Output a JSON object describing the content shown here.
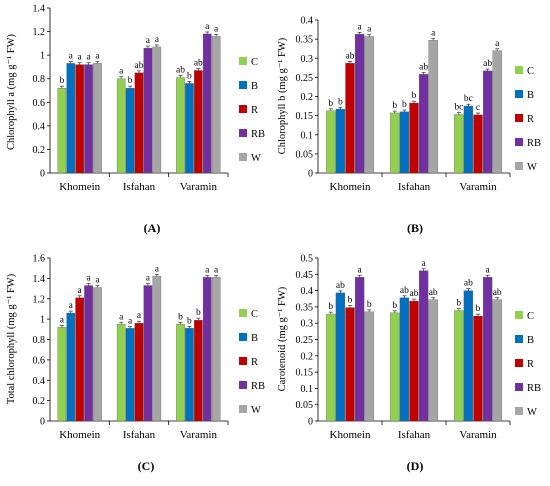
{
  "legend": [
    {
      "key": "C",
      "color": "#92D050"
    },
    {
      "key": "B",
      "color": "#0070C0"
    },
    {
      "key": "R",
      "color": "#C00000"
    },
    {
      "key": "RB",
      "color": "#7030A0"
    },
    {
      "key": "W",
      "color": "#A6A6A6"
    }
  ],
  "chart_data": [
    {
      "type": "bar",
      "panel_label": "(A)",
      "ylabel": "Chlorophyll a (mg g⁻¹ FW)",
      "ylim": [
        0,
        1.4
      ],
      "yticks": [
        "0",
        "0.2",
        "0.4",
        "0.6",
        "0.8",
        "1",
        "1.2",
        "1.4"
      ],
      "categories": [
        "Khomein",
        "Isfahan",
        "Varamin"
      ],
      "series": [
        {
          "name": "C",
          "values": [
            0.72,
            0.8,
            0.81
          ],
          "letters": [
            "b",
            "a",
            "ab"
          ]
        },
        {
          "name": "B",
          "values": [
            0.93,
            0.72,
            0.76
          ],
          "letters": [
            "a",
            "b",
            "b"
          ]
        },
        {
          "name": "R",
          "values": [
            0.92,
            0.85,
            0.87
          ],
          "letters": [
            "a",
            "ab",
            "ab"
          ]
        },
        {
          "name": "RB",
          "values": [
            0.92,
            1.06,
            1.18
          ],
          "letters": [
            "a",
            "a",
            "a"
          ]
        },
        {
          "name": "W",
          "values": [
            0.93,
            1.07,
            1.16
          ],
          "letters": [
            "a",
            "a",
            "a"
          ]
        }
      ]
    },
    {
      "type": "bar",
      "panel_label": "(B)",
      "ylabel": "Chlorophyll b (mg g⁻¹ FW)",
      "ylim": [
        0,
        0.4
      ],
      "yticks": [
        "0",
        "0.05",
        "0.1",
        "0.15",
        "0.2",
        "0.25",
        "0.3",
        "0.35",
        "0.4"
      ],
      "categories": [
        "Khomein",
        "Isfahan",
        "Varamin"
      ],
      "series": [
        {
          "name": "C",
          "values": [
            0.163,
            0.157,
            0.153
          ],
          "letters": [
            "b",
            "b",
            "bc"
          ]
        },
        {
          "name": "B",
          "values": [
            0.167,
            0.16,
            0.175
          ],
          "letters": [
            "b",
            "b",
            "bc"
          ]
        },
        {
          "name": "R",
          "values": [
            0.287,
            0.183,
            0.152
          ],
          "letters": [
            "ab",
            "b",
            "c"
          ]
        },
        {
          "name": "RB",
          "values": [
            0.363,
            0.258,
            0.267
          ],
          "letters": [
            "a",
            "ab",
            "ab"
          ]
        },
        {
          "name": "W",
          "values": [
            0.357,
            0.347,
            0.32
          ],
          "letters": [
            "a",
            "a",
            "a"
          ]
        }
      ]
    },
    {
      "type": "bar",
      "panel_label": "(C)",
      "ylabel": "Total chlorophyll (mg g⁻¹ FW)",
      "ylim": [
        0,
        1.6
      ],
      "yticks": [
        "0",
        "0.2",
        "0.4",
        "0.6",
        "0.8",
        "1",
        "1.2",
        "1.4",
        "1.6"
      ],
      "categories": [
        "Khomein",
        "Isfahan",
        "Varamin"
      ],
      "series": [
        {
          "name": "C",
          "values": [
            0.92,
            0.95,
            0.95
          ],
          "letters": [
            "a",
            "a",
            "b"
          ]
        },
        {
          "name": "B",
          "values": [
            1.06,
            0.91,
            0.91
          ],
          "letters": [
            "a",
            "a",
            "b"
          ]
        },
        {
          "name": "R",
          "values": [
            1.21,
            0.96,
            0.99
          ],
          "letters": [
            "a",
            "a",
            "b"
          ]
        },
        {
          "name": "RB",
          "values": [
            1.33,
            1.33,
            1.41
          ],
          "letters": [
            "a",
            "a",
            "a"
          ]
        },
        {
          "name": "W",
          "values": [
            1.31,
            1.42,
            1.41
          ],
          "letters": [
            "a",
            "a",
            "a"
          ]
        }
      ]
    },
    {
      "type": "bar",
      "panel_label": "(D)",
      "ylabel": "Carotenoid (mg g⁻¹ FW)",
      "ylim": [
        0,
        0.5
      ],
      "yticks": [
        "0",
        "0.05",
        "0.1",
        "0.15",
        "0.2",
        "0.25",
        "0.3",
        "0.35",
        "0.4",
        "0.45",
        "0.5"
      ],
      "categories": [
        "Khomein",
        "Isfahan",
        "Varamin"
      ],
      "series": [
        {
          "name": "C",
          "values": [
            0.328,
            0.332,
            0.339
          ],
          "letters": [
            "b",
            "b",
            "b"
          ]
        },
        {
          "name": "B",
          "values": [
            0.393,
            0.378,
            0.4
          ],
          "letters": [
            "ab",
            "ab",
            "ab"
          ]
        },
        {
          "name": "R",
          "values": [
            0.348,
            0.368,
            0.322
          ],
          "letters": [
            "b",
            "ab",
            "b"
          ]
        },
        {
          "name": "RB",
          "values": [
            0.441,
            0.461,
            0.441
          ],
          "letters": [
            "a",
            "a",
            "a"
          ]
        },
        {
          "name": "W",
          "values": [
            0.335,
            0.372,
            0.372
          ],
          "letters": [
            "b",
            "ab",
            "ab"
          ]
        }
      ]
    }
  ]
}
